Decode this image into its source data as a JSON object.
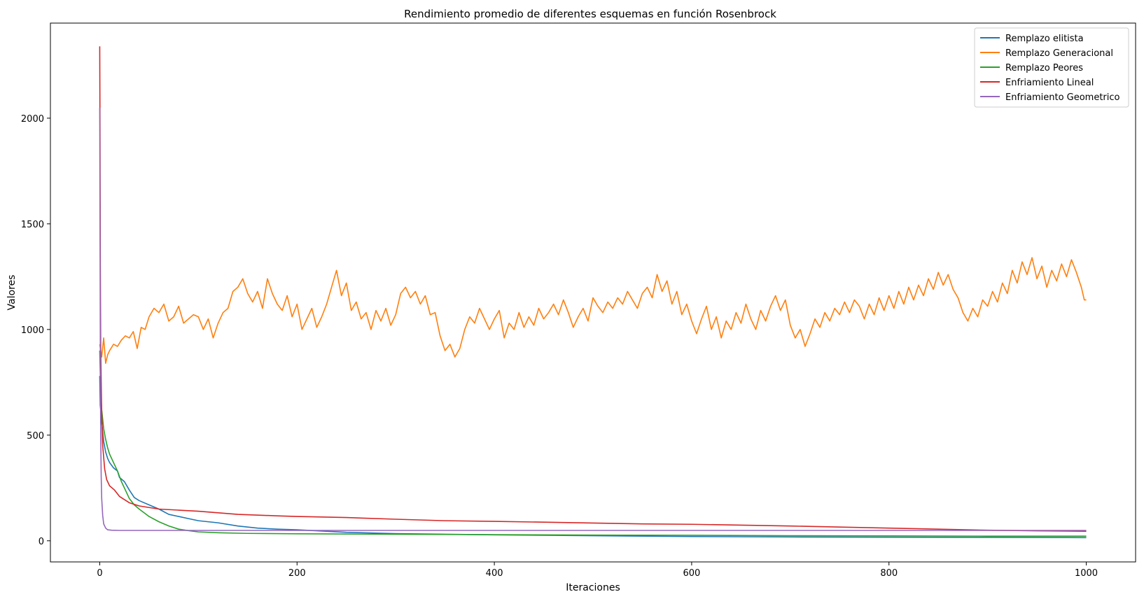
{
  "chart_data": {
    "type": "line",
    "title": "Rendimiento promedio de diferentes esquemas en función Rosenbrock",
    "xlabel": "Iteraciones",
    "ylabel": "Valores",
    "xlim": [
      -50,
      1050
    ],
    "ylim": [
      -100,
      2450
    ],
    "xticks": [
      0,
      200,
      400,
      600,
      800,
      1000
    ],
    "yticks": [
      0,
      500,
      1000,
      1500,
      2000
    ],
    "grid": false,
    "legend_position": "top-right",
    "series": [
      {
        "name": "Remplazo elitista",
        "color": "#1f77b4",
        "points": [
          [
            0,
            780
          ],
          [
            0.5,
            640
          ],
          [
            1,
            620
          ],
          [
            2,
            560
          ],
          [
            4,
            470
          ],
          [
            6,
            420
          ],
          [
            8,
            390
          ],
          [
            10,
            370
          ],
          [
            14,
            345
          ],
          [
            18,
            330
          ],
          [
            20,
            300
          ],
          [
            25,
            280
          ],
          [
            30,
            240
          ],
          [
            35,
            205
          ],
          [
            40,
            190
          ],
          [
            50,
            170
          ],
          [
            60,
            150
          ],
          [
            70,
            125
          ],
          [
            80,
            115
          ],
          [
            90,
            105
          ],
          [
            100,
            95
          ],
          [
            120,
            85
          ],
          [
            140,
            70
          ],
          [
            160,
            60
          ],
          [
            180,
            55
          ],
          [
            200,
            52
          ],
          [
            250,
            40
          ],
          [
            300,
            34
          ],
          [
            400,
            28
          ],
          [
            500,
            24
          ],
          [
            600,
            20
          ],
          [
            700,
            18
          ],
          [
            800,
            17
          ],
          [
            900,
            16
          ],
          [
            1000,
            15
          ]
        ]
      },
      {
        "name": "Remplazo Generacional",
        "color": "#ff7f0e",
        "points": [
          [
            0,
            930
          ],
          [
            2,
            870
          ],
          [
            4,
            960
          ],
          [
            6,
            840
          ],
          [
            8,
            880
          ],
          [
            10,
            900
          ],
          [
            14,
            930
          ],
          [
            18,
            920
          ],
          [
            22,
            950
          ],
          [
            26,
            970
          ],
          [
            30,
            960
          ],
          [
            34,
            990
          ],
          [
            38,
            910
          ],
          [
            42,
            1010
          ],
          [
            46,
            1000
          ],
          [
            50,
            1060
          ],
          [
            55,
            1100
          ],
          [
            60,
            1080
          ],
          [
            65,
            1120
          ],
          [
            70,
            1040
          ],
          [
            75,
            1060
          ],
          [
            80,
            1110
          ],
          [
            85,
            1030
          ],
          [
            90,
            1050
          ],
          [
            95,
            1070
          ],
          [
            100,
            1060
          ],
          [
            105,
            1000
          ],
          [
            110,
            1050
          ],
          [
            115,
            960
          ],
          [
            120,
            1030
          ],
          [
            125,
            1080
          ],
          [
            130,
            1100
          ],
          [
            135,
            1180
          ],
          [
            140,
            1200
          ],
          [
            145,
            1240
          ],
          [
            150,
            1170
          ],
          [
            155,
            1130
          ],
          [
            160,
            1180
          ],
          [
            165,
            1100
          ],
          [
            170,
            1240
          ],
          [
            175,
            1170
          ],
          [
            180,
            1120
          ],
          [
            185,
            1090
          ],
          [
            190,
            1160
          ],
          [
            195,
            1060
          ],
          [
            200,
            1120
          ],
          [
            205,
            1000
          ],
          [
            210,
            1050
          ],
          [
            215,
            1100
          ],
          [
            220,
            1010
          ],
          [
            225,
            1060
          ],
          [
            230,
            1120
          ],
          [
            235,
            1200
          ],
          [
            240,
            1280
          ],
          [
            245,
            1160
          ],
          [
            250,
            1220
          ],
          [
            255,
            1090
          ],
          [
            260,
            1130
          ],
          [
            265,
            1050
          ],
          [
            270,
            1080
          ],
          [
            275,
            1000
          ],
          [
            280,
            1090
          ],
          [
            285,
            1040
          ],
          [
            290,
            1100
          ],
          [
            295,
            1020
          ],
          [
            300,
            1070
          ],
          [
            305,
            1170
          ],
          [
            310,
            1200
          ],
          [
            315,
            1150
          ],
          [
            320,
            1180
          ],
          [
            325,
            1120
          ],
          [
            330,
            1160
          ],
          [
            335,
            1070
          ],
          [
            340,
            1080
          ],
          [
            345,
            970
          ],
          [
            350,
            900
          ],
          [
            355,
            930
          ],
          [
            360,
            870
          ],
          [
            365,
            910
          ],
          [
            370,
            1000
          ],
          [
            375,
            1060
          ],
          [
            380,
            1030
          ],
          [
            385,
            1100
          ],
          [
            390,
            1050
          ],
          [
            395,
            1000
          ],
          [
            400,
            1050
          ],
          [
            405,
            1090
          ],
          [
            410,
            960
          ],
          [
            415,
            1030
          ],
          [
            420,
            1000
          ],
          [
            425,
            1080
          ],
          [
            430,
            1010
          ],
          [
            435,
            1060
          ],
          [
            440,
            1020
          ],
          [
            445,
            1100
          ],
          [
            450,
            1050
          ],
          [
            455,
            1080
          ],
          [
            460,
            1120
          ],
          [
            465,
            1070
          ],
          [
            470,
            1140
          ],
          [
            475,
            1080
          ],
          [
            480,
            1010
          ],
          [
            485,
            1060
          ],
          [
            490,
            1100
          ],
          [
            495,
            1040
          ],
          [
            500,
            1150
          ],
          [
            505,
            1110
          ],
          [
            510,
            1080
          ],
          [
            515,
            1130
          ],
          [
            520,
            1100
          ],
          [
            525,
            1150
          ],
          [
            530,
            1120
          ],
          [
            535,
            1180
          ],
          [
            540,
            1140
          ],
          [
            545,
            1100
          ],
          [
            550,
            1170
          ],
          [
            555,
            1200
          ],
          [
            560,
            1150
          ],
          [
            565,
            1260
          ],
          [
            570,
            1180
          ],
          [
            575,
            1230
          ],
          [
            580,
            1120
          ],
          [
            585,
            1180
          ],
          [
            590,
            1070
          ],
          [
            595,
            1120
          ],
          [
            600,
            1040
          ],
          [
            605,
            980
          ],
          [
            610,
            1050
          ],
          [
            615,
            1110
          ],
          [
            620,
            1000
          ],
          [
            625,
            1060
          ],
          [
            630,
            960
          ],
          [
            635,
            1040
          ],
          [
            640,
            1000
          ],
          [
            645,
            1080
          ],
          [
            650,
            1030
          ],
          [
            655,
            1120
          ],
          [
            660,
            1050
          ],
          [
            665,
            1000
          ],
          [
            670,
            1090
          ],
          [
            675,
            1040
          ],
          [
            680,
            1110
          ],
          [
            685,
            1160
          ],
          [
            690,
            1090
          ],
          [
            695,
            1140
          ],
          [
            700,
            1020
          ],
          [
            705,
            960
          ],
          [
            710,
            1000
          ],
          [
            715,
            920
          ],
          [
            720,
            980
          ],
          [
            725,
            1050
          ],
          [
            730,
            1010
          ],
          [
            735,
            1080
          ],
          [
            740,
            1040
          ],
          [
            745,
            1100
          ],
          [
            750,
            1070
          ],
          [
            755,
            1130
          ],
          [
            760,
            1080
          ],
          [
            765,
            1140
          ],
          [
            770,
            1110
          ],
          [
            775,
            1050
          ],
          [
            780,
            1120
          ],
          [
            785,
            1070
          ],
          [
            790,
            1150
          ],
          [
            795,
            1090
          ],
          [
            800,
            1160
          ],
          [
            805,
            1100
          ],
          [
            810,
            1180
          ],
          [
            815,
            1120
          ],
          [
            820,
            1200
          ],
          [
            825,
            1140
          ],
          [
            830,
            1210
          ],
          [
            835,
            1160
          ],
          [
            840,
            1240
          ],
          [
            845,
            1190
          ],
          [
            850,
            1270
          ],
          [
            855,
            1210
          ],
          [
            860,
            1260
          ],
          [
            865,
            1190
          ],
          [
            870,
            1150
          ],
          [
            875,
            1080
          ],
          [
            880,
            1040
          ],
          [
            885,
            1100
          ],
          [
            890,
            1060
          ],
          [
            895,
            1140
          ],
          [
            900,
            1110
          ],
          [
            905,
            1180
          ],
          [
            910,
            1130
          ],
          [
            915,
            1220
          ],
          [
            920,
            1170
          ],
          [
            925,
            1280
          ],
          [
            930,
            1220
          ],
          [
            935,
            1320
          ],
          [
            940,
            1260
          ],
          [
            945,
            1340
          ],
          [
            950,
            1240
          ],
          [
            955,
            1300
          ],
          [
            960,
            1200
          ],
          [
            965,
            1280
          ],
          [
            970,
            1230
          ],
          [
            975,
            1310
          ],
          [
            980,
            1250
          ],
          [
            985,
            1330
          ],
          [
            990,
            1270
          ],
          [
            995,
            1200
          ],
          [
            998,
            1140
          ],
          [
            1000,
            1140
          ]
        ]
      },
      {
        "name": "Remplazo Peores",
        "color": "#2ca02c",
        "points": [
          [
            0,
            900
          ],
          [
            0.5,
            800
          ],
          [
            1,
            700
          ],
          [
            2,
            620
          ],
          [
            4,
            530
          ],
          [
            6,
            480
          ],
          [
            8,
            440
          ],
          [
            10,
            410
          ],
          [
            14,
            370
          ],
          [
            18,
            330
          ],
          [
            22,
            280
          ],
          [
            26,
            240
          ],
          [
            30,
            200
          ],
          [
            35,
            170
          ],
          [
            40,
            150
          ],
          [
            50,
            115
          ],
          [
            60,
            90
          ],
          [
            70,
            70
          ],
          [
            80,
            55
          ],
          [
            90,
            48
          ],
          [
            100,
            42
          ],
          [
            120,
            38
          ],
          [
            150,
            35
          ],
          [
            200,
            33
          ],
          [
            300,
            31
          ],
          [
            400,
            29
          ],
          [
            500,
            27
          ],
          [
            600,
            26
          ],
          [
            700,
            24
          ],
          [
            800,
            23
          ],
          [
            900,
            22
          ],
          [
            1000,
            22
          ]
        ]
      },
      {
        "name": "Enfriamiento Lineal",
        "color": "#d62728",
        "points": [
          [
            0,
            2340
          ],
          [
            0.3,
            1900
          ],
          [
            0.6,
            1300
          ],
          [
            1,
            900
          ],
          [
            2,
            600
          ],
          [
            3,
            450
          ],
          [
            5,
            340
          ],
          [
            7,
            290
          ],
          [
            10,
            260
          ],
          [
            15,
            240
          ],
          [
            20,
            210
          ],
          [
            30,
            180
          ],
          [
            40,
            165
          ],
          [
            60,
            150
          ],
          [
            80,
            145
          ],
          [
            100,
            140
          ],
          [
            140,
            125
          ],
          [
            180,
            118
          ],
          [
            200,
            115
          ],
          [
            250,
            110
          ],
          [
            300,
            102
          ],
          [
            350,
            95
          ],
          [
            400,
            92
          ],
          [
            450,
            88
          ],
          [
            500,
            84
          ],
          [
            550,
            80
          ],
          [
            600,
            78
          ],
          [
            650,
            74
          ],
          [
            700,
            70
          ],
          [
            750,
            65
          ],
          [
            800,
            60
          ],
          [
            850,
            55
          ],
          [
            900,
            50
          ],
          [
            950,
            47
          ],
          [
            1000,
            45
          ]
        ]
      },
      {
        "name": "Enfriamiento Geometrico",
        "color": "#9467bd",
        "points": [
          [
            0,
            2050
          ],
          [
            0.3,
            1500
          ],
          [
            0.6,
            900
          ],
          [
            1,
            500
          ],
          [
            1.5,
            300
          ],
          [
            2,
            200
          ],
          [
            3,
            120
          ],
          [
            4,
            80
          ],
          [
            6,
            60
          ],
          [
            8,
            52
          ],
          [
            12,
            50
          ],
          [
            20,
            49
          ],
          [
            100,
            49
          ],
          [
            1000,
            49
          ]
        ]
      }
    ]
  }
}
